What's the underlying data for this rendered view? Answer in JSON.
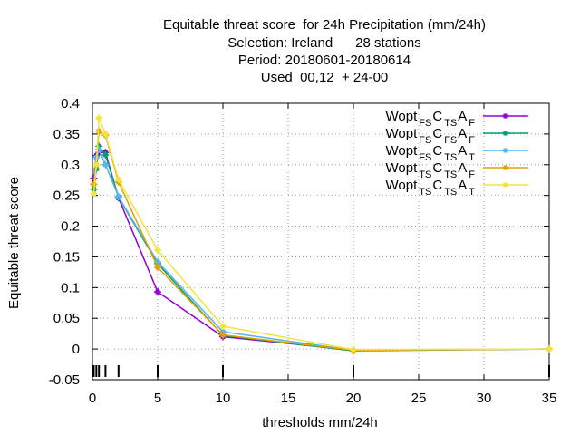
{
  "chart_data": {
    "type": "line",
    "title_lines": [
      "Equitable threat score  for 24h Precipitation (mm/24h)",
      "Selection: Ireland      28 stations",
      "Period: 20180601-20180614",
      "Used  00,12  + 24-00"
    ],
    "xlabel": "thresholds mm/24h",
    "ylabel": "Equitable threat score",
    "xlim": [
      0,
      35
    ],
    "ylim": [
      -0.05,
      0.4
    ],
    "xticks": [
      "0",
      "5",
      "10",
      "15",
      "20",
      "25",
      "30",
      "35"
    ],
    "yticks": [
      "-0.05",
      "0",
      "0.05",
      "0.1",
      "0.15",
      "0.2",
      "0.25",
      "0.3",
      "0.35",
      "0.4"
    ],
    "grid": true,
    "legend_position": "top-right",
    "threshold_marks": [
      0.1,
      0.3,
      0.5,
      1,
      2,
      5,
      10,
      20,
      35
    ],
    "series": [
      {
        "label": {
          "base": "Wopt",
          "s1": "FS",
          "mid": "C",
          "s2": "TS",
          "end": "A",
          "s3": "F"
        },
        "color": "#9400d3",
        "x": [
          0.1,
          0.3,
          0.5,
          1,
          2,
          5,
          10,
          20
        ],
        "y": [
          0.278,
          0.315,
          0.32,
          0.32,
          0.246,
          0.093,
          0.02,
          -0.002
        ]
      },
      {
        "label": {
          "base": "Wopt",
          "s1": "FS",
          "mid": "C",
          "s2": "FS",
          "end": "A",
          "s3": "F"
        },
        "color": "#009e73",
        "x": [
          0.1,
          0.3,
          0.5,
          1,
          2,
          5,
          10,
          20,
          35
        ],
        "y": [
          0.26,
          0.293,
          0.33,
          0.316,
          0.247,
          0.139,
          0.022,
          -0.003,
          0.0
        ]
      },
      {
        "label": {
          "base": "Wopt",
          "s1": "FS",
          "mid": "C",
          "s2": "TS",
          "end": "A",
          "s3": "T"
        },
        "color": "#56b4e9",
        "x": [
          0.1,
          0.3,
          0.5,
          1,
          2,
          5,
          10,
          20,
          35
        ],
        "y": [
          0.268,
          0.312,
          0.325,
          0.3,
          0.248,
          0.142,
          0.028,
          -0.002,
          0.0
        ]
      },
      {
        "label": {
          "base": "Wopt",
          "s1": "TS",
          "mid": "C",
          "s2": "TS",
          "end": "A",
          "s3": "F"
        },
        "color": "#e69f00",
        "x": [
          0.1,
          0.3,
          0.5,
          1,
          2,
          5,
          10,
          20,
          35
        ],
        "y": [
          0.268,
          0.3,
          0.355,
          0.348,
          0.272,
          0.133,
          0.023,
          -0.002,
          0.0
        ]
      },
      {
        "label": {
          "base": "Wopt",
          "s1": "TS",
          "mid": "C",
          "s2": "TS",
          "end": "A",
          "s3": "T"
        },
        "color": "#f0e442",
        "x": [
          0.1,
          0.3,
          0.5,
          1,
          2,
          5,
          10,
          20,
          35
        ],
        "y": [
          0.253,
          0.3,
          0.376,
          0.35,
          0.276,
          0.161,
          0.037,
          -0.001,
          0.0
        ]
      }
    ]
  }
}
